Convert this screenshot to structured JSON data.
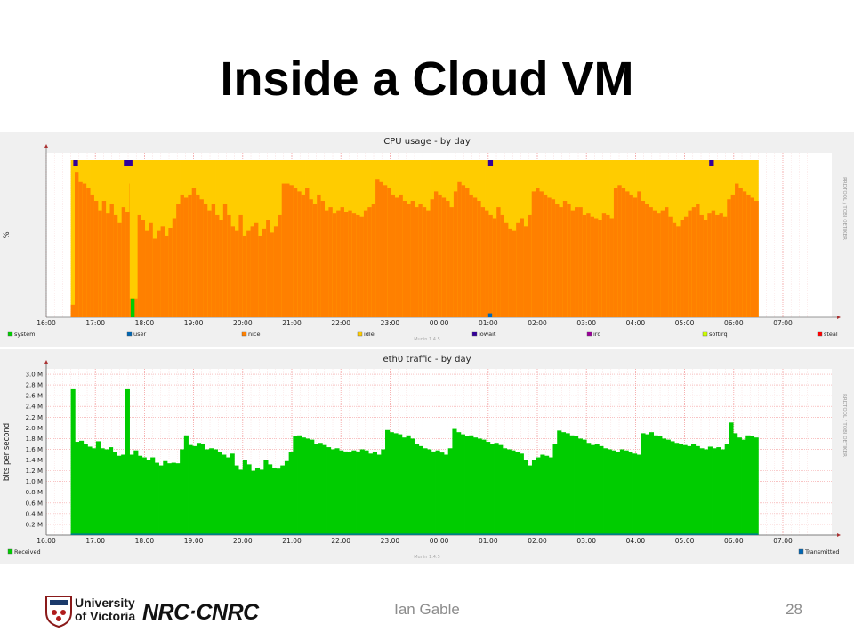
{
  "slide": {
    "title": "Inside a Cloud VM",
    "author": "Ian Gable",
    "page_number": "28",
    "university_logo_text": [
      "University",
      "of Victoria"
    ],
    "nrc_logo_text": "NRC·CNRC"
  },
  "chart_data": [
    {
      "type": "area",
      "stacked": true,
      "title": "CPU usage - by day",
      "ylabel": "%",
      "xlabel": "",
      "ylim": [
        0,
        100
      ],
      "yticks": [
        0,
        10,
        20,
        30,
        40,
        50,
        60,
        70,
        80,
        90,
        100
      ],
      "xticks": [
        "16:00",
        "17:00",
        "18:00",
        "19:00",
        "20:00",
        "21:00",
        "22:00",
        "23:00",
        "00:00",
        "01:00",
        "02:00",
        "03:00",
        "04:00",
        "05:00",
        "06:00",
        "07:00"
      ],
      "x_range_hours": [
        16.0,
        7.5
      ],
      "data_range_hours": [
        16.5,
        6.5
      ],
      "grid": true,
      "legend_position": "bottom",
      "side_label": "RRDTOOL / TOBI OETIKER",
      "watermark": "Munin 1.4.5",
      "legend": [
        {
          "name": "system",
          "color": "#00cc00"
        },
        {
          "name": "user",
          "color": "#0066b3"
        },
        {
          "name": "nice",
          "color": "#ff8000"
        },
        {
          "name": "idle",
          "color": "#ffcc00"
        },
        {
          "name": "iowait",
          "color": "#330099"
        },
        {
          "name": "irq",
          "color": "#990099"
        },
        {
          "name": "softirq",
          "color": "#ccff00"
        },
        {
          "name": "steal",
          "color": "#ff0000"
        }
      ],
      "series": [
        {
          "name": "nice",
          "color": "#ff8000",
          "values": [
            8,
            92,
            86,
            85,
            82,
            78,
            74,
            68,
            74,
            66,
            72,
            65,
            60,
            70,
            67,
            85,
            72,
            65,
            62,
            55,
            60,
            50,
            55,
            58,
            52,
            57,
            63,
            72,
            78,
            76,
            78,
            82,
            78,
            75,
            72,
            68,
            72,
            65,
            62,
            72,
            65,
            58,
            55,
            65,
            52,
            55,
            58,
            60,
            52,
            56,
            62,
            54,
            58,
            65,
            85,
            85,
            84,
            82,
            80,
            78,
            82,
            75,
            72,
            78,
            74,
            68,
            70,
            66,
            68,
            70,
            67,
            68,
            66,
            65,
            64,
            68,
            70,
            72,
            88,
            86,
            84,
            82,
            78,
            76,
            78,
            74,
            72,
            74,
            70,
            72,
            70,
            68,
            75,
            80,
            78,
            76,
            74,
            70,
            80,
            86,
            84,
            82,
            78,
            76,
            74,
            70,
            68,
            65,
            63,
            70,
            65,
            60,
            56,
            55,
            60,
            63,
            58,
            65,
            80,
            82,
            80,
            78,
            76,
            75,
            72,
            70,
            74,
            72,
            68,
            70,
            70,
            65,
            66,
            64,
            63,
            62,
            66,
            65,
            63,
            82,
            84,
            82,
            80,
            78,
            76,
            80,
            74,
            72,
            70,
            68,
            66,
            68,
            70,
            64,
            60,
            58,
            62,
            64,
            68,
            70,
            72,
            65,
            62,
            66,
            68,
            65,
            66,
            64,
            75,
            78,
            85,
            82,
            80,
            78,
            76,
            74
          ],
          "note": "dips to ~10-12 for two columns near 17:40"
        },
        {
          "name": "idle",
          "color": "#ffcc00",
          "values_rule": "fills remaining to 100 for each column"
        },
        {
          "name": "iowait",
          "color": "#330099",
          "spikes_at": [
            "16:40",
            "17:40",
            "01:00",
            "05:30"
          ]
        },
        {
          "name": "system",
          "color": "#00cc00",
          "spikes_at": [
            "17:45"
          ],
          "spike_value": 12
        }
      ]
    },
    {
      "type": "area",
      "title": "eth0 traffic - by day",
      "ylabel": "bits per second",
      "xlabel": "",
      "ylim": [
        0,
        3.1
      ],
      "yticks": [
        "0.2 M",
        "0.4 M",
        "0.6 M",
        "0.8 M",
        "1.0 M",
        "1.2 M",
        "1.4 M",
        "1.6 M",
        "1.8 M",
        "2.0 M",
        "2.2 M",
        "2.4 M",
        "2.6 M",
        "2.8 M",
        "3.0 M"
      ],
      "xticks": [
        "16:00",
        "17:00",
        "18:00",
        "19:00",
        "20:00",
        "21:00",
        "22:00",
        "23:00",
        "00:00",
        "01:00",
        "02:00",
        "03:00",
        "04:00",
        "05:00",
        "06:00",
        "07:00"
      ],
      "grid": true,
      "legend_position": "bottom",
      "side_label": "RRDTOOL / TOBI OETIKER",
      "watermark": "Munin 1.4.5",
      "legend": [
        {
          "name": "Received",
          "color": "#00cc00"
        },
        {
          "name": "Transmitted",
          "color": "#0066b3"
        }
      ],
      "series": [
        {
          "name": "Received",
          "color": "#00cc00",
          "values": [
            2.72,
            1.74,
            1.76,
            1.7,
            1.65,
            1.62,
            1.75,
            1.62,
            1.6,
            1.64,
            1.55,
            1.48,
            1.5,
            2.72,
            1.5,
            1.58,
            1.48,
            1.45,
            1.4,
            1.45,
            1.35,
            1.3,
            1.38,
            1.34,
            1.35,
            1.34,
            1.6,
            1.86,
            1.68,
            1.66,
            1.72,
            1.7,
            1.6,
            1.62,
            1.6,
            1.55,
            1.5,
            1.45,
            1.52,
            1.3,
            1.22,
            1.4,
            1.32,
            1.2,
            1.26,
            1.22,
            1.4,
            1.32,
            1.25,
            1.24,
            1.3,
            1.38,
            1.55,
            1.84,
            1.86,
            1.82,
            1.8,
            1.78,
            1.7,
            1.72,
            1.68,
            1.64,
            1.6,
            1.62,
            1.58,
            1.56,
            1.55,
            1.58,
            1.56,
            1.6,
            1.58,
            1.52,
            1.55,
            1.5,
            1.6,
            1.96,
            1.92,
            1.9,
            1.88,
            1.82,
            1.86,
            1.8,
            1.7,
            1.66,
            1.62,
            1.6,
            1.56,
            1.58,
            1.54,
            1.5,
            1.62,
            1.98,
            1.92,
            1.88,
            1.84,
            1.86,
            1.82,
            1.8,
            1.78,
            1.74,
            1.7,
            1.72,
            1.68,
            1.62,
            1.6,
            1.58,
            1.55,
            1.52,
            1.4,
            1.3,
            1.4,
            1.45,
            1.5,
            1.48,
            1.45,
            1.7,
            1.95,
            1.92,
            1.9,
            1.86,
            1.84,
            1.8,
            1.78,
            1.72,
            1.68,
            1.7,
            1.66,
            1.62,
            1.6,
            1.58,
            1.55,
            1.6,
            1.58,
            1.55,
            1.52,
            1.5,
            1.9,
            1.88,
            1.92,
            1.86,
            1.84,
            1.8,
            1.78,
            1.75,
            1.72,
            1.7,
            1.68,
            1.66,
            1.7,
            1.66,
            1.62,
            1.6,
            1.65,
            1.62,
            1.64,
            1.6,
            1.7,
            2.1,
            1.9,
            1.82,
            1.78,
            1.86,
            1.84,
            1.82
          ]
        },
        {
          "name": "Transmitted",
          "color": "#0066b3",
          "values_rule": "near 0 across the day"
        }
      ]
    }
  ]
}
